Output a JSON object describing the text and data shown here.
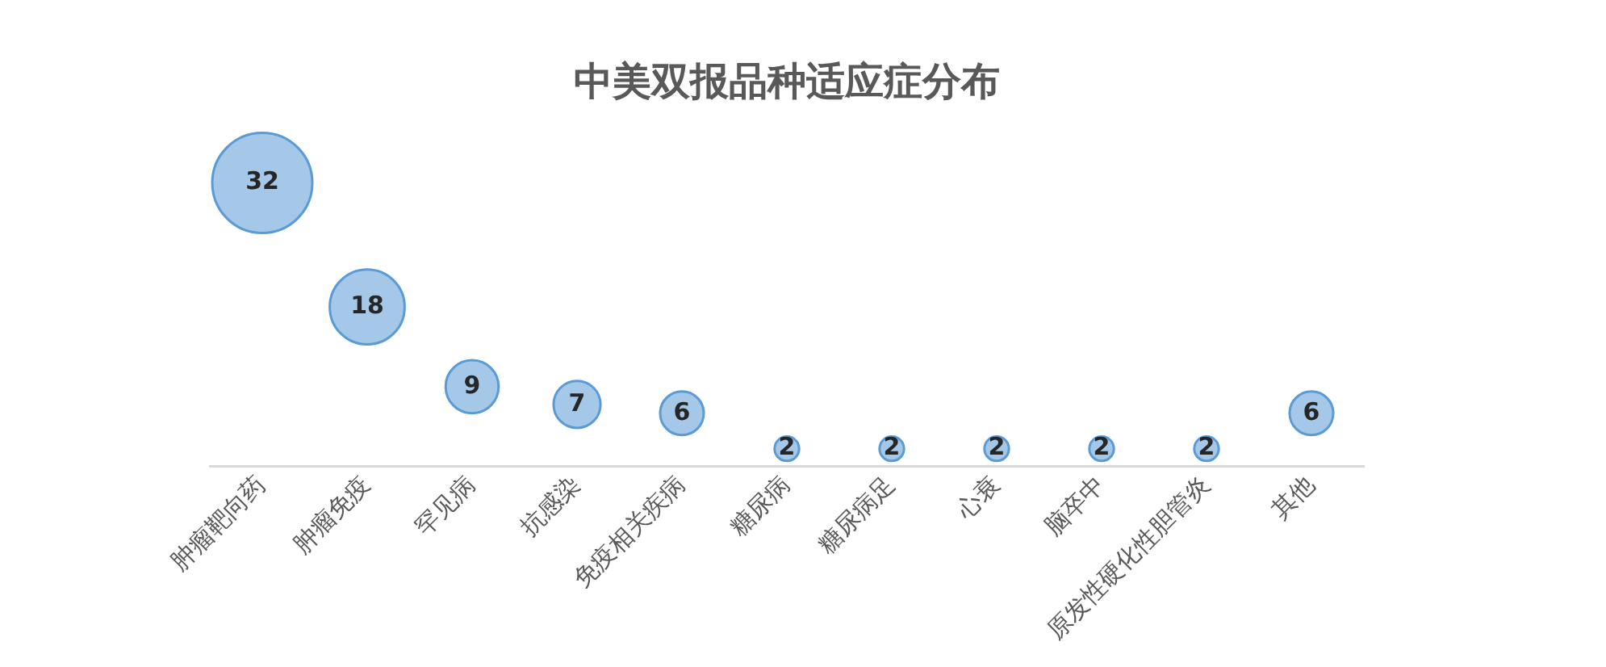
{
  "chart_data": {
    "type": "bubble",
    "title": "中美双报品种适应症分布",
    "categories": [
      "肿瘤靶向药",
      "肿瘤免疫",
      "罕见病",
      "抗感染",
      "免疫相关疾病",
      "糖尿病",
      "糖尿病足",
      "心衰",
      "脑卒中",
      "原发性硬化性胆管炎",
      "其他"
    ],
    "values": [
      32,
      18,
      9,
      7,
      6,
      2,
      2,
      2,
      2,
      2,
      6
    ],
    "sizes": [
      1,
      0.56,
      0.28,
      0.22,
      0.19,
      0.06,
      0.06,
      0.06,
      0.06,
      0.06,
      0.19
    ],
    "color": "#5b9bd5",
    "tick_labels": "x",
    "data_labels": true,
    "grid": false,
    "legend": false
  }
}
